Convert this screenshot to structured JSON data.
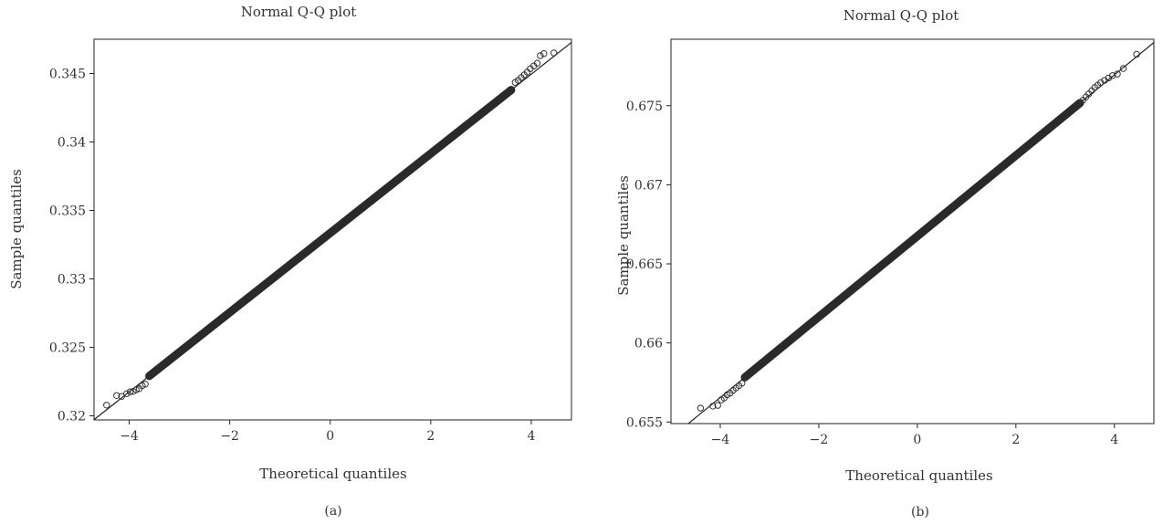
{
  "chart_data": [
    {
      "type": "scatter",
      "title": "Normal Q-Q plot",
      "caption": "(a)",
      "xlabel": "Theoretical quantiles",
      "ylabel": "Sample quantiles",
      "xlim": [
        -4.7,
        4.8
      ],
      "ylim": [
        0.3197,
        0.3475
      ],
      "xticks": [
        -4,
        -2,
        0,
        2,
        4
      ],
      "xtick_labels": [
        "−4",
        "−2",
        "0",
        "2",
        "4"
      ],
      "yticks": [
        0.32,
        0.325,
        0.33,
        0.335,
        0.34,
        0.345
      ],
      "ytick_labels": [
        "0.32",
        "0.325",
        "0.33",
        "0.335",
        "0.34",
        "0.345"
      ],
      "reference_line": {
        "intercept": 0.33335,
        "slope": 0.0029
      },
      "band": {
        "x": [
          -3.6,
          3.6
        ]
      },
      "points": [
        {
          "x": -4.45,
          "y": 0.32078
        },
        {
          "x": -4.25,
          "y": 0.32148
        },
        {
          "x": -4.15,
          "y": 0.32142
        },
        {
          "x": -4.05,
          "y": 0.32162
        },
        {
          "x": -3.98,
          "y": 0.32175
        },
        {
          "x": -3.92,
          "y": 0.32178
        },
        {
          "x": -3.86,
          "y": 0.3219
        },
        {
          "x": -3.8,
          "y": 0.32198
        },
        {
          "x": -3.74,
          "y": 0.3222
        },
        {
          "x": -3.68,
          "y": 0.32232
        },
        {
          "x": 3.68,
          "y": 0.34435
        },
        {
          "x": 3.74,
          "y": 0.3445
        },
        {
          "x": 3.8,
          "y": 0.3447
        },
        {
          "x": 3.86,
          "y": 0.3449
        },
        {
          "x": 3.92,
          "y": 0.3451
        },
        {
          "x": 3.98,
          "y": 0.34535
        },
        {
          "x": 4.05,
          "y": 0.34555
        },
        {
          "x": 4.12,
          "y": 0.34575
        },
        {
          "x": 4.18,
          "y": 0.3463
        },
        {
          "x": 4.25,
          "y": 0.34645
        },
        {
          "x": 4.45,
          "y": 0.3465
        }
      ]
    },
    {
      "type": "scatter",
      "title": "Normal Q-Q plot",
      "caption": "(b)",
      "xlabel": "Theoretical quantiles",
      "ylabel": "Sample quantiles",
      "xlim": [
        -5.0,
        4.8
      ],
      "ylim": [
        0.6549,
        0.6792
      ],
      "xticks": [
        -4,
        -2,
        0,
        2,
        4
      ],
      "xtick_labels": [
        "−4",
        "−2",
        "0",
        "2",
        "4"
      ],
      "yticks": [
        0.655,
        0.66,
        0.665,
        0.67,
        0.675
      ],
      "ytick_labels": [
        "0.655",
        "0.66",
        "0.665",
        "0.67",
        "0.675"
      ],
      "reference_line": {
        "intercept": 0.66675,
        "slope": 0.00255
      },
      "band": {
        "x": [
          -3.5,
          3.3
        ]
      },
      "points": [
        {
          "x": -4.4,
          "y": 0.65588
        },
        {
          "x": -4.15,
          "y": 0.656
        },
        {
          "x": -4.05,
          "y": 0.65605
        },
        {
          "x": -3.98,
          "y": 0.6564
        },
        {
          "x": -3.92,
          "y": 0.65652
        },
        {
          "x": -3.86,
          "y": 0.65672
        },
        {
          "x": -3.8,
          "y": 0.65682
        },
        {
          "x": -3.74,
          "y": 0.657
        },
        {
          "x": -3.68,
          "y": 0.65715
        },
        {
          "x": -3.62,
          "y": 0.6573
        },
        {
          "x": -3.56,
          "y": 0.65745
        },
        {
          "x": 3.36,
          "y": 0.67535
        },
        {
          "x": 3.42,
          "y": 0.67555
        },
        {
          "x": 3.48,
          "y": 0.67575
        },
        {
          "x": 3.54,
          "y": 0.67595
        },
        {
          "x": 3.6,
          "y": 0.67615
        },
        {
          "x": 3.66,
          "y": 0.6763
        },
        {
          "x": 3.72,
          "y": 0.67645
        },
        {
          "x": 3.8,
          "y": 0.6766
        },
        {
          "x": 3.88,
          "y": 0.67675
        },
        {
          "x": 3.96,
          "y": 0.6769
        },
        {
          "x": 4.06,
          "y": 0.677
        },
        {
          "x": 4.18,
          "y": 0.67735
        },
        {
          "x": 4.45,
          "y": 0.67825
        }
      ]
    }
  ]
}
